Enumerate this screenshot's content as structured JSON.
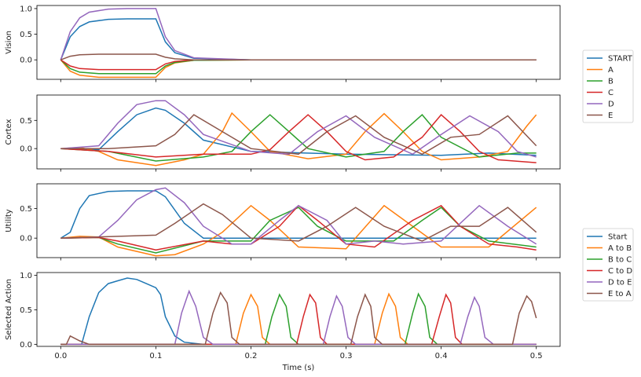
{
  "colors": [
    "#1f77b4",
    "#ff7f0e",
    "#2ca02c",
    "#d62728",
    "#9467bd",
    "#8c564b"
  ],
  "chart_data": [
    {
      "type": "line",
      "ylabel": "Vision",
      "xlim": [
        -0.025,
        0.525
      ],
      "ylim": [
        -0.38,
        1.06
      ],
      "yticks": [
        0.0,
        0.5,
        1.0
      ],
      "ytick_labels": [
        "0.0",
        "0.5",
        "1.0"
      ],
      "legend": [
        "START",
        "A",
        "B",
        "C",
        "D",
        "E"
      ],
      "series": [
        {
          "name": "START",
          "x": [
            0.0,
            0.01,
            0.02,
            0.03,
            0.05,
            0.07,
            0.1,
            0.11,
            0.12,
            0.14,
            0.2,
            0.5
          ],
          "y": [
            0.0,
            0.45,
            0.65,
            0.74,
            0.79,
            0.8,
            0.8,
            0.35,
            0.14,
            0.03,
            0.0,
            0.0
          ]
        },
        {
          "name": "A",
          "x": [
            0.0,
            0.01,
            0.02,
            0.04,
            0.1,
            0.11,
            0.12,
            0.14,
            0.2,
            0.5
          ],
          "y": [
            0.0,
            -0.22,
            -0.3,
            -0.34,
            -0.34,
            -0.15,
            -0.06,
            -0.01,
            0.0,
            0.0
          ]
        },
        {
          "name": "B",
          "x": [
            0.0,
            0.01,
            0.02,
            0.04,
            0.1,
            0.11,
            0.12,
            0.14,
            0.2,
            0.5
          ],
          "y": [
            0.0,
            -0.17,
            -0.24,
            -0.27,
            -0.27,
            -0.12,
            -0.05,
            -0.01,
            0.0,
            0.0
          ]
        },
        {
          "name": "C",
          "x": [
            0.0,
            0.01,
            0.02,
            0.04,
            0.1,
            0.11,
            0.12,
            0.14,
            0.2,
            0.5
          ],
          "y": [
            0.0,
            -0.12,
            -0.17,
            -0.19,
            -0.19,
            -0.08,
            -0.03,
            0.0,
            0.0,
            0.0
          ]
        },
        {
          "name": "D",
          "x": [
            0.0,
            0.01,
            0.02,
            0.03,
            0.05,
            0.07,
            0.1,
            0.11,
            0.12,
            0.14,
            0.2,
            0.5
          ],
          "y": [
            0.0,
            0.55,
            0.82,
            0.93,
            0.99,
            1.0,
            1.0,
            0.45,
            0.18,
            0.04,
            0.0,
            0.0
          ]
        },
        {
          "name": "E",
          "x": [
            0.0,
            0.01,
            0.02,
            0.04,
            0.1,
            0.11,
            0.12,
            0.14,
            0.2,
            0.5
          ],
          "y": [
            0.0,
            0.07,
            0.1,
            0.11,
            0.11,
            0.05,
            0.02,
            0.0,
            0.0,
            0.0
          ]
        }
      ]
    },
    {
      "type": "line",
      "ylabel": "Cortex",
      "xlim": [
        -0.025,
        0.525
      ],
      "ylim": [
        -0.36,
        0.95
      ],
      "yticks": [
        0.0,
        0.5
      ],
      "ytick_labels": [
        "0.0",
        "0.5"
      ],
      "legend": [
        "START",
        "A",
        "B",
        "C",
        "D",
        "E"
      ],
      "series": [
        {
          "name": "START",
          "x": [
            0.0,
            0.02,
            0.04,
            0.06,
            0.08,
            0.1,
            0.11,
            0.13,
            0.15,
            0.2,
            0.3,
            0.4,
            0.45,
            0.5
          ],
          "y": [
            0.0,
            0.0,
            -0.02,
            0.3,
            0.6,
            0.72,
            0.68,
            0.45,
            0.15,
            -0.05,
            -0.1,
            -0.12,
            -0.08,
            -0.12
          ]
        },
        {
          "name": "A",
          "x": [
            0.0,
            0.02,
            0.04,
            0.06,
            0.1,
            0.13,
            0.15,
            0.17,
            0.18,
            0.2,
            0.22,
            0.26,
            0.3,
            0.32,
            0.34,
            0.36,
            0.38,
            0.4,
            0.44,
            0.47,
            0.49,
            0.5
          ],
          "y": [
            0.0,
            0.02,
            -0.05,
            -0.2,
            -0.3,
            -0.2,
            -0.1,
            0.3,
            0.63,
            0.3,
            -0.05,
            -0.18,
            -0.1,
            0.3,
            0.62,
            0.3,
            -0.05,
            -0.2,
            -0.15,
            -0.05,
            0.4,
            0.6
          ]
        },
        {
          "name": "B",
          "x": [
            0.0,
            0.05,
            0.1,
            0.15,
            0.18,
            0.2,
            0.22,
            0.24,
            0.26,
            0.3,
            0.34,
            0.36,
            0.38,
            0.4,
            0.44,
            0.48,
            0.5
          ],
          "y": [
            0.0,
            -0.05,
            -0.22,
            -0.15,
            -0.05,
            0.3,
            0.6,
            0.3,
            0.0,
            -0.15,
            -0.05,
            0.3,
            0.6,
            0.2,
            -0.15,
            -0.08,
            -0.08
          ]
        },
        {
          "name": "C",
          "x": [
            0.0,
            0.05,
            0.1,
            0.15,
            0.2,
            0.22,
            0.24,
            0.26,
            0.28,
            0.3,
            0.32,
            0.35,
            0.38,
            0.4,
            0.42,
            0.44,
            0.46,
            0.5
          ],
          "y": [
            0.0,
            -0.05,
            -0.15,
            -0.1,
            -0.1,
            -0.02,
            0.3,
            0.6,
            0.3,
            -0.05,
            -0.2,
            -0.15,
            0.2,
            0.6,
            0.3,
            -0.05,
            -0.2,
            -0.25
          ]
        },
        {
          "name": "D",
          "x": [
            0.0,
            0.04,
            0.06,
            0.08,
            0.1,
            0.11,
            0.13,
            0.15,
            0.2,
            0.24,
            0.27,
            0.3,
            0.33,
            0.37,
            0.4,
            0.43,
            0.46,
            0.48,
            0.5
          ],
          "y": [
            0.0,
            0.05,
            0.45,
            0.78,
            0.85,
            0.85,
            0.6,
            0.25,
            -0.05,
            -0.1,
            0.3,
            0.58,
            0.2,
            -0.1,
            0.25,
            0.58,
            0.3,
            -0.05,
            -0.15
          ]
        },
        {
          "name": "E",
          "x": [
            0.0,
            0.05,
            0.1,
            0.12,
            0.14,
            0.17,
            0.2,
            0.25,
            0.28,
            0.31,
            0.34,
            0.38,
            0.41,
            0.44,
            0.47,
            0.5
          ],
          "y": [
            0.0,
            0.0,
            0.05,
            0.25,
            0.6,
            0.3,
            0.0,
            -0.1,
            0.3,
            0.58,
            0.2,
            -0.1,
            0.2,
            0.25,
            0.58,
            0.05
          ]
        }
      ]
    },
    {
      "type": "line",
      "ylabel": "Utility",
      "xlim": [
        -0.025,
        0.525
      ],
      "ylim": [
        -0.33,
        0.92
      ],
      "yticks": [
        0.0,
        0.5
      ],
      "ytick_labels": [
        "0.0",
        "0.5"
      ],
      "legend": [
        "Start",
        "A to B",
        "B to C",
        "C to D",
        "D to E",
        "E to A"
      ],
      "series": [
        {
          "name": "Start",
          "x": [
            0.0,
            0.01,
            0.02,
            0.03,
            0.05,
            0.07,
            0.1,
            0.11,
            0.13,
            0.15,
            0.5
          ],
          "y": [
            0.0,
            0.1,
            0.5,
            0.72,
            0.79,
            0.8,
            0.8,
            0.7,
            0.25,
            0.0,
            0.0
          ]
        },
        {
          "name": "A to B",
          "x": [
            0.0,
            0.02,
            0.04,
            0.06,
            0.1,
            0.12,
            0.15,
            0.17,
            0.2,
            0.22,
            0.25,
            0.3,
            0.34,
            0.37,
            0.4,
            0.45,
            0.5
          ],
          "y": [
            0.0,
            0.03,
            0.02,
            -0.15,
            -0.3,
            -0.28,
            -0.1,
            0.1,
            0.55,
            0.3,
            -0.15,
            -0.18,
            0.55,
            0.2,
            -0.15,
            -0.15,
            0.52
          ]
        },
        {
          "name": "B to C",
          "x": [
            0.0,
            0.04,
            0.06,
            0.1,
            0.15,
            0.18,
            0.2,
            0.22,
            0.25,
            0.27,
            0.3,
            0.35,
            0.38,
            0.4,
            0.42,
            0.45,
            0.5
          ],
          "y": [
            0.0,
            0.01,
            -0.1,
            -0.25,
            -0.05,
            -0.05,
            -0.05,
            0.3,
            0.52,
            0.2,
            -0.05,
            -0.05,
            0.3,
            0.52,
            0.2,
            -0.05,
            -0.15
          ]
        },
        {
          "name": "C to D",
          "x": [
            0.0,
            0.04,
            0.06,
            0.1,
            0.15,
            0.18,
            0.2,
            0.23,
            0.25,
            0.27,
            0.3,
            0.33,
            0.37,
            0.4,
            0.42,
            0.45,
            0.48,
            0.5
          ],
          "y": [
            0.0,
            0.01,
            -0.05,
            -0.2,
            -0.05,
            -0.1,
            -0.1,
            0.2,
            0.55,
            0.3,
            -0.1,
            -0.15,
            0.3,
            0.55,
            0.2,
            -0.1,
            -0.15,
            -0.2
          ]
        },
        {
          "name": "D to E",
          "x": [
            0.0,
            0.04,
            0.06,
            0.08,
            0.1,
            0.11,
            0.13,
            0.15,
            0.18,
            0.2,
            0.23,
            0.25,
            0.28,
            0.3,
            0.33,
            0.36,
            0.4,
            0.44,
            0.47,
            0.5
          ],
          "y": [
            0.0,
            0.02,
            0.3,
            0.65,
            0.82,
            0.85,
            0.6,
            0.2,
            -0.1,
            -0.1,
            0.3,
            0.55,
            0.3,
            -0.1,
            -0.05,
            -0.1,
            -0.05,
            0.55,
            0.2,
            -0.1
          ]
        },
        {
          "name": "E to A",
          "x": [
            0.0,
            0.04,
            0.1,
            0.12,
            0.15,
            0.17,
            0.2,
            0.25,
            0.28,
            0.31,
            0.34,
            0.38,
            0.41,
            0.44,
            0.47,
            0.5
          ],
          "y": [
            0.0,
            0.02,
            0.05,
            0.25,
            0.58,
            0.4,
            0.0,
            -0.05,
            0.2,
            0.52,
            0.2,
            -0.05,
            0.2,
            0.2,
            0.52,
            0.1
          ]
        }
      ]
    },
    {
      "type": "line",
      "ylabel": "Selected Action",
      "xlabel": "Time (s)",
      "xlim": [
        -0.025,
        0.525
      ],
      "ylim": [
        -0.03,
        1.04
      ],
      "yticks": [
        0.0,
        0.5,
        1.0
      ],
      "ytick_labels": [
        "0.0",
        "0.5",
        "1.0"
      ],
      "xticks": [
        0.0,
        0.1,
        0.2,
        0.3,
        0.4,
        0.5
      ],
      "xtick_labels": [
        "0.0",
        "0.1",
        "0.2",
        "0.3",
        "0.4",
        "0.5"
      ],
      "series": [
        {
          "name": "START",
          "x": [
            0.0,
            0.022,
            0.03,
            0.04,
            0.05,
            0.06,
            0.07,
            0.08,
            0.09,
            0.1,
            0.105,
            0.11,
            0.12,
            0.13,
            0.15,
            0.5
          ],
          "y": [
            0.0,
            0.0,
            0.4,
            0.75,
            0.88,
            0.92,
            0.96,
            0.94,
            0.88,
            0.82,
            0.72,
            0.4,
            0.12,
            0.03,
            0.0,
            0.0
          ]
        },
        {
          "name": "A",
          "x": [
            0.0,
            0.184,
            0.192,
            0.2,
            0.207,
            0.212,
            0.22,
            0.33,
            0.338,
            0.345,
            0.352,
            0.357,
            0.365,
            0.5
          ],
          "y": [
            0.0,
            0.0,
            0.45,
            0.72,
            0.55,
            0.1,
            0.0,
            0.0,
            0.45,
            0.73,
            0.55,
            0.1,
            0.0,
            0.0
          ]
        },
        {
          "name": "B",
          "x": [
            0.0,
            0.215,
            0.222,
            0.23,
            0.237,
            0.242,
            0.25,
            0.362,
            0.37,
            0.376,
            0.383,
            0.388,
            0.396,
            0.5
          ],
          "y": [
            0.0,
            0.0,
            0.4,
            0.72,
            0.55,
            0.1,
            0.0,
            0.0,
            0.45,
            0.73,
            0.55,
            0.1,
            0.0,
            0.0
          ]
        },
        {
          "name": "C",
          "x": [
            0.0,
            0.248,
            0.255,
            0.262,
            0.268,
            0.273,
            0.28,
            0.39,
            0.398,
            0.405,
            0.41,
            0.415,
            0.422,
            0.5
          ],
          "y": [
            0.0,
            0.0,
            0.4,
            0.72,
            0.6,
            0.1,
            0.0,
            0.0,
            0.4,
            0.72,
            0.6,
            0.1,
            0.0,
            0.0
          ]
        },
        {
          "name": "D",
          "x": [
            0.0,
            0.12,
            0.127,
            0.135,
            0.142,
            0.15,
            0.16,
            0.276,
            0.283,
            0.29,
            0.296,
            0.302,
            0.31,
            0.42,
            0.428,
            0.435,
            0.44,
            0.446,
            0.455,
            0.5
          ],
          "y": [
            0.0,
            0.0,
            0.45,
            0.77,
            0.55,
            0.1,
            0.0,
            0.0,
            0.4,
            0.7,
            0.55,
            0.1,
            0.0,
            0.0,
            0.4,
            0.68,
            0.55,
            0.1,
            0.0,
            0.0
          ]
        },
        {
          "name": "E",
          "x": [
            0.0,
            0.006,
            0.01,
            0.02,
            0.03,
            0.152,
            0.16,
            0.168,
            0.175,
            0.18,
            0.188,
            0.305,
            0.312,
            0.32,
            0.326,
            0.33,
            0.338,
            0.475,
            0.482,
            0.49,
            0.495,
            0.5
          ],
          "y": [
            0.0,
            0.0,
            0.12,
            0.05,
            0.0,
            0.0,
            0.45,
            0.75,
            0.6,
            0.1,
            0.0,
            0.0,
            0.4,
            0.72,
            0.55,
            0.1,
            0.0,
            0.0,
            0.45,
            0.7,
            0.62,
            0.38
          ]
        }
      ]
    }
  ]
}
